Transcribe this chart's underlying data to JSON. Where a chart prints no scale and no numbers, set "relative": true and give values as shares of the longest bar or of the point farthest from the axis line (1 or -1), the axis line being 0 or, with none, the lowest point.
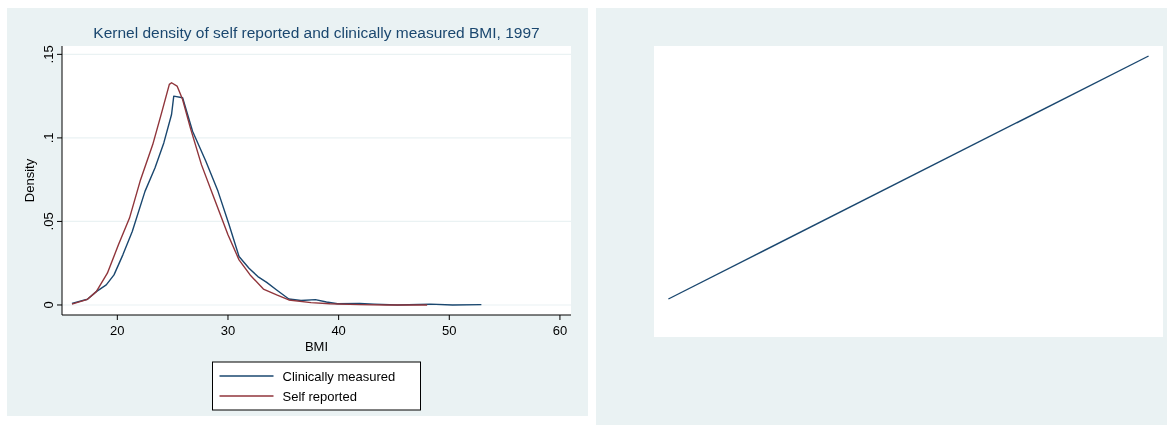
{
  "chart_data": [
    {
      "type": "line",
      "title": "Kernel density of self reported and clinically measured BMI, 1997",
      "xlabel": "BMI",
      "ylabel": "Density",
      "xlim": [
        15,
        61
      ],
      "ylim": [
        -0.006,
        0.155
      ],
      "xticks": [
        20,
        30,
        40,
        50,
        60
      ],
      "yticks": [
        0,
        {
          "value": 0.05,
          "label": ".05"
        },
        {
          "value": 0.1,
          "label": ".1"
        },
        {
          "value": 0.15,
          "label": ".15"
        }
      ],
      "grid": "y",
      "legend": "bottom",
      "series": [
        {
          "name": "Clinically measured",
          "color": "#1a476f",
          "x": [
            15.9,
            17.3,
            18.1,
            19,
            19.7,
            20.5,
            21.35,
            22.5,
            23.4,
            24.2,
            24.9,
            25.1,
            25.9,
            26.8,
            28,
            29.1,
            30.1,
            31,
            31.9,
            32.7,
            33.5,
            34.4,
            35.5,
            36.6,
            37.9,
            38.9,
            39.9,
            41.9,
            43.2,
            45.3,
            48.3,
            50.3,
            52.9
          ],
          "values": [
            0.001,
            0.0034,
            0.008,
            0.012,
            0.018,
            0.03,
            0.044,
            0.068,
            0.082,
            0.097,
            0.114,
            0.125,
            0.124,
            0.104,
            0.086,
            0.068,
            0.048,
            0.029,
            0.022,
            0.017,
            0.0135,
            0.009,
            0.0036,
            0.0027,
            0.0032,
            0.0018,
            0.0007,
            0.0009,
            0.0005,
            0,
            0.0005,
            0,
            0.0002
          ]
        },
        {
          "name": "Self reported",
          "color": "#90353b",
          "x": [
            15.9,
            17.3,
            18.1,
            19.1,
            20.1,
            21.1,
            22.1,
            23.2,
            24,
            24.7,
            24.9,
            25.4,
            25.9,
            26.6,
            27.6,
            28.8,
            30,
            31,
            32,
            33.2,
            34.4,
            35.5,
            37.5,
            39.2,
            41.9,
            44.3,
            48
          ],
          "values": [
            0.0005,
            0.0034,
            0.008,
            0.019,
            0.036,
            0.052,
            0.075,
            0.096,
            0.115,
            0.132,
            0.133,
            0.131,
            0.123,
            0.106,
            0.084,
            0.063,
            0.042,
            0.027,
            0.018,
            0.0095,
            0.006,
            0.003,
            0.0014,
            0.0007,
            0.0002,
            0,
            0
          ]
        }
      ]
    },
    {
      "type": "line",
      "relative": true,
      "categories": [
        null,
        null
      ],
      "series": [
        {
          "color": "#1a476f",
          "values": [
            0,
            1
          ]
        }
      ]
    }
  ]
}
